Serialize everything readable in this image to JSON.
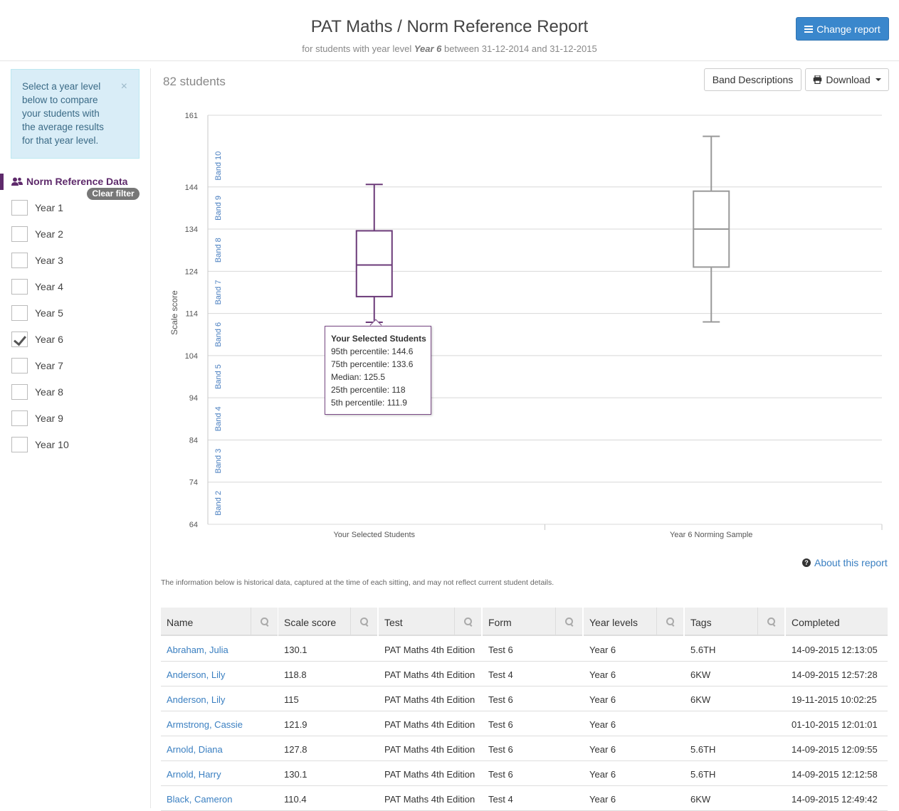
{
  "header": {
    "title": "PAT Maths / Norm Reference Report",
    "subtitle_prefix": "for students with year level",
    "subtitle_year": "Year 6",
    "subtitle_suffix": "between 31-12-2014 and 31-12-2015",
    "change_report_label": "Change report"
  },
  "sidebar": {
    "info_text": "Select a year level below to compare your students with the average results for that year level.",
    "close_symbol": "×",
    "section_title": "Norm Reference Data",
    "clear_filter_label": "Clear filter",
    "years": [
      {
        "label": "Year 1",
        "checked": false
      },
      {
        "label": "Year 2",
        "checked": false
      },
      {
        "label": "Year 3",
        "checked": false
      },
      {
        "label": "Year 4",
        "checked": false
      },
      {
        "label": "Year 5",
        "checked": false
      },
      {
        "label": "Year 6",
        "checked": true
      },
      {
        "label": "Year 7",
        "checked": false
      },
      {
        "label": "Year 8",
        "checked": false
      },
      {
        "label": "Year 9",
        "checked": false
      },
      {
        "label": "Year 10",
        "checked": false
      }
    ]
  },
  "main": {
    "students_count": "82 students",
    "band_descriptions_label": "Band Descriptions",
    "download_label": "Download",
    "about_label": "About this report",
    "history_note": "The information below is historical data, captured at the time of each sitting, and may not reflect current student details."
  },
  "chart_data": {
    "type": "boxplot",
    "ylabel": "Scale score",
    "y_ticks": [
      64,
      74,
      84,
      94,
      104,
      114,
      124,
      134,
      144,
      161
    ],
    "ylim": [
      64,
      161
    ],
    "bands": [
      {
        "label": "Band 2",
        "center": 69
      },
      {
        "label": "Band 3",
        "center": 79
      },
      {
        "label": "Band 4",
        "center": 89
      },
      {
        "label": "Band 5",
        "center": 99
      },
      {
        "label": "Band 6",
        "center": 109
      },
      {
        "label": "Band 7",
        "center": 119
      },
      {
        "label": "Band 8",
        "center": 129
      },
      {
        "label": "Band 9",
        "center": 139
      },
      {
        "label": "Band 10",
        "center": 149
      }
    ],
    "series": [
      {
        "name": "Your Selected Students",
        "p5": 111.9,
        "p25": 118,
        "median": 125.5,
        "p75": 133.6,
        "p95": 144.6,
        "color": "#6b3a78"
      },
      {
        "name": "Year 6 Norming Sample",
        "p5": 112,
        "p25": 125,
        "median": 134,
        "p75": 143,
        "p95": 156,
        "color": "#999999"
      }
    ],
    "tooltip": {
      "title": "Your Selected Students",
      "lines": [
        "95th percentile: 144.6",
        "75th percentile: 133.6",
        "Median: 125.5",
        "25th percentile: 118",
        "5th percentile: 111.9"
      ]
    }
  },
  "table": {
    "columns": [
      "Name",
      "Scale score",
      "Test",
      "Form",
      "Year levels",
      "Tags",
      "Completed"
    ],
    "rows": [
      [
        "Abraham, Julia",
        "130.1",
        "PAT Maths 4th Edition",
        "Test 6",
        "Year 6",
        "5.6TH",
        "14-09-2015 12:13:05"
      ],
      [
        "Anderson, Lily",
        "118.8",
        "PAT Maths 4th Edition",
        "Test 4",
        "Year 6",
        "6KW",
        "14-09-2015 12:57:28"
      ],
      [
        "Anderson, Lily",
        "115",
        "PAT Maths 4th Edition",
        "Test 6",
        "Year 6",
        "6KW",
        "19-11-2015 10:02:25"
      ],
      [
        "Armstrong, Cassie",
        "121.9",
        "PAT Maths 4th Edition",
        "Test 6",
        "Year 6",
        "",
        "01-10-2015 12:01:01"
      ],
      [
        "Arnold, Diana",
        "127.8",
        "PAT Maths 4th Edition",
        "Test 6",
        "Year 6",
        "5.6TH",
        "14-09-2015 12:09:55"
      ],
      [
        "Arnold, Harry",
        "130.1",
        "PAT Maths 4th Edition",
        "Test 6",
        "Year 6",
        "5.6TH",
        "14-09-2015 12:12:58"
      ],
      [
        "Black, Cameron",
        "110.4",
        "PAT Maths 4th Edition",
        "Test 4",
        "Year 6",
        "6KW",
        "14-09-2015 12:49:42"
      ]
    ]
  }
}
